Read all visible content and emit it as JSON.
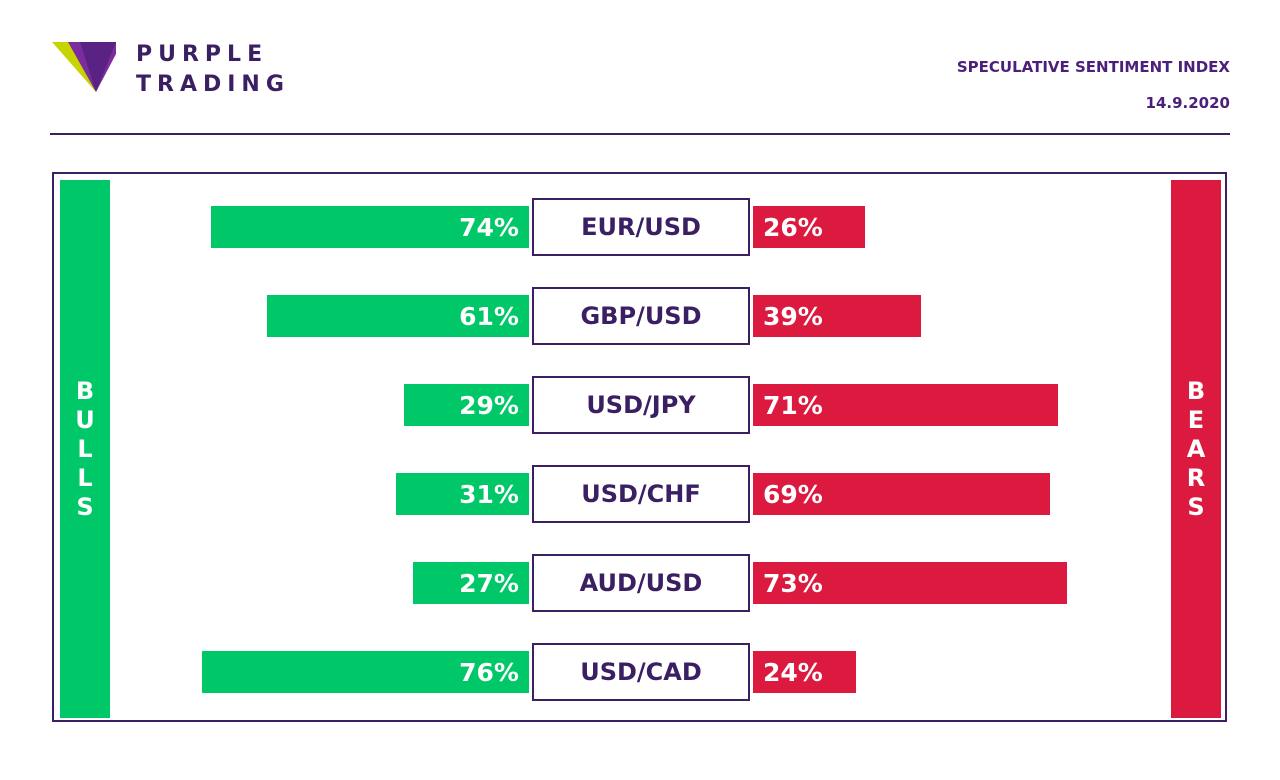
{
  "brand": {
    "line1": "PURPLE",
    "line2": "TRADING",
    "colors": {
      "purple": "#3b1f63",
      "lime": "#c8d400",
      "violet": "#7b2c9e"
    }
  },
  "header": {
    "title": "SPECULATIVE SENTIMENT INDEX",
    "date": "14.9.2020"
  },
  "sides": {
    "bulls": "BULLS",
    "bears": "BEARS"
  },
  "chart_data": {
    "type": "bar",
    "title": "SPECULATIVE SENTIMENT INDEX",
    "categories": [
      "EUR/USD",
      "GBP/USD",
      "USD/JPY",
      "USD/CHF",
      "AUD/USD",
      "USD/CAD"
    ],
    "series": [
      {
        "name": "BULLS",
        "color": "#00c767",
        "values": [
          74,
          61,
          29,
          31,
          27,
          76
        ]
      },
      {
        "name": "BEARS",
        "color": "#dc1a3f",
        "values": [
          26,
          39,
          71,
          69,
          73,
          24
        ]
      }
    ],
    "unit": "%",
    "ylim": [
      0,
      100
    ],
    "legend": "left-right side bars",
    "grid": false
  }
}
